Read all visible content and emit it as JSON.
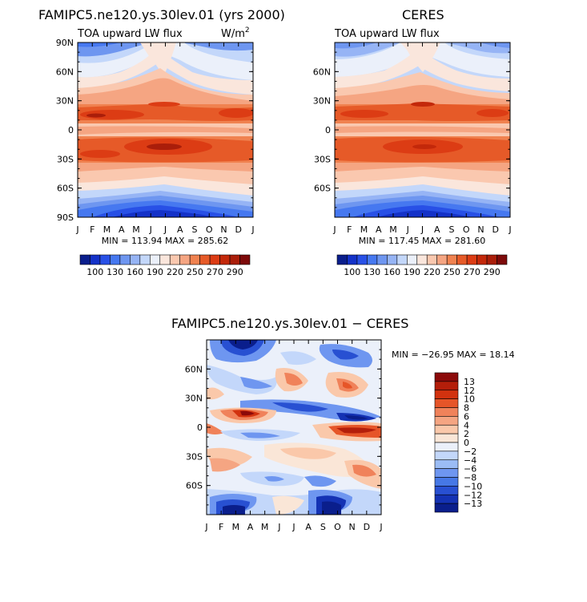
{
  "figure": {
    "title_left": "FAMIPC5.ne120.ys.30lev.01 (yrs 2000)",
    "title_right": "CERES",
    "title_diff": "FAMIPC5.ne120.ys.30lev.01 − CERES"
  },
  "chart_data": [
    {
      "type": "heatmap",
      "title": "FAMIPC5.ne120.ys.30lev.01 (yrs 2000)",
      "subtitle": "TOA upward LW flux",
      "units": "W/m2",
      "units_label": "W/m",
      "units_exp": "2",
      "x_ticks": [
        "J",
        "F",
        "M",
        "A",
        "M",
        "J",
        "J",
        "A",
        "S",
        "O",
        "N",
        "D",
        "J"
      ],
      "y_ticks": [
        "90N",
        "60N",
        "30N",
        "0",
        "30S",
        "60S",
        "90S"
      ],
      "ylim": [
        -90,
        90
      ],
      "stats": "MIN = 113.94  MAX = 285.62",
      "min": 113.94,
      "max": 285.62,
      "colorbar_labels": [
        "100",
        "130",
        "160",
        "190",
        "220",
        "250",
        "270",
        "290"
      ],
      "colorbar_colors": [
        "#0a1e8c",
        "#1432c8",
        "#2850e6",
        "#4678f0",
        "#6e96f0",
        "#96b4f5",
        "#c3d7fa",
        "#ebf0fa",
        "#fae6dc",
        "#fac8af",
        "#f5a582",
        "#f08250",
        "#e65a28",
        "#dc3c14",
        "#c3280a",
        "#aa1e0a",
        "#7d0a0a"
      ]
    },
    {
      "type": "heatmap",
      "title": "CERES",
      "subtitle": "TOA upward LW flux",
      "x_ticks": [
        "J",
        "F",
        "M",
        "A",
        "M",
        "J",
        "J",
        "A",
        "S",
        "O",
        "N",
        "D",
        "J"
      ],
      "y_ticks": [
        "60N",
        "30N",
        "0",
        "30S",
        "60S"
      ],
      "ylim": [
        -90,
        90
      ],
      "stats": "MIN = 117.45  MAX = 281.60",
      "min": 117.45,
      "max": 281.6,
      "colorbar_labels": [
        "100",
        "130",
        "160",
        "190",
        "220",
        "250",
        "270",
        "290"
      ]
    },
    {
      "type": "heatmap",
      "title": "FAMIPC5.ne120.ys.30lev.01 − CERES",
      "x_ticks": [
        "J",
        "F",
        "M",
        "A",
        "M",
        "J",
        "J",
        "A",
        "S",
        "O",
        "N",
        "D",
        "J"
      ],
      "y_ticks": [
        "60N",
        "30N",
        "0",
        "30S",
        "60S"
      ],
      "ylim": [
        -90,
        90
      ],
      "stats": "MIN = −26.95  MAX =  18.14",
      "min": -26.95,
      "max": 18.14,
      "colorbar_labels": [
        "13",
        "12",
        "10",
        "8",
        "6",
        "4",
        "2",
        "0",
        "−2",
        "−4",
        "−6",
        "−8",
        "−10",
        "−12",
        "−13"
      ],
      "colorbar_colors": [
        "#8c0a0a",
        "#b41e0a",
        "#d2320f",
        "#e65528",
        "#f0825a",
        "#f5a582",
        "#fac8aa",
        "#fae6d7",
        "#ebf0fa",
        "#c3d7fa",
        "#9bbcf5",
        "#6e96f0",
        "#4678e6",
        "#2850d2",
        "#1432b4",
        "#0a1e8c"
      ]
    }
  ]
}
